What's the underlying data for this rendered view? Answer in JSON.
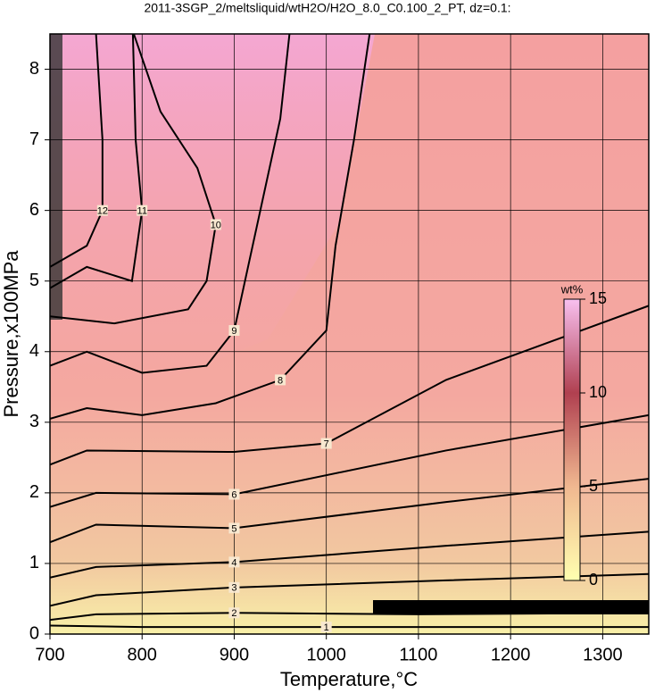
{
  "chart_data": {
    "type": "contour",
    "title": "2011-3SGP_2/meltsliquid/wtH2O/H2O_8.0_C0.100_2_PT, dz=0.1:",
    "xlabel": "Temperature,°C",
    "ylabel": "Pressure,x100MPa",
    "xlim": [
      700,
      1350
    ],
    "ylim": [
      0,
      8.5
    ],
    "xticks": [
      700,
      800,
      900,
      1000,
      1100,
      1200,
      1300
    ],
    "yticks": [
      0,
      1,
      2,
      3,
      4,
      5,
      6,
      7,
      8
    ],
    "grid": true,
    "color": "#000000",
    "colorbar": {
      "label": "wt%",
      "lim": [
        0,
        15
      ],
      "ticks": [
        0,
        5,
        10,
        15
      ],
      "colors": [
        "#ffffb0",
        "#f0b890",
        "#b04050",
        "#f8c0f0"
      ]
    },
    "contours": [
      {
        "level": 1,
        "x": [
          700,
          800,
          900,
          1000,
          1100,
          1200,
          1350
        ],
        "y": [
          0.12,
          0.1,
          0.1,
          0.1,
          0.1,
          0.1,
          0.1
        ]
      },
      {
        "level": 2,
        "x": [
          700,
          750,
          900,
          1100,
          1350
        ],
        "y": [
          0.2,
          0.28,
          0.3,
          0.28,
          0.3
        ]
      },
      {
        "level": 3,
        "x": [
          700,
          750,
          900,
          1130,
          1350
        ],
        "y": [
          0.4,
          0.55,
          0.66,
          0.76,
          0.85
        ]
      },
      {
        "level": 4,
        "x": [
          700,
          750,
          900,
          1130,
          1350
        ],
        "y": [
          0.8,
          0.95,
          1.02,
          1.25,
          1.45
        ]
      },
      {
        "level": 5,
        "x": [
          700,
          750,
          900,
          1130,
          1350
        ],
        "y": [
          1.3,
          1.55,
          1.5,
          1.87,
          2.2
        ]
      },
      {
        "level": 6,
        "x": [
          700,
          750,
          900,
          1130,
          1350
        ],
        "y": [
          1.8,
          2.0,
          1.98,
          2.6,
          3.1
        ]
      },
      {
        "level": 7,
        "x": [
          700,
          740,
          900,
          1000,
          1130,
          1350
        ],
        "y": [
          2.4,
          2.6,
          2.58,
          2.7,
          3.6,
          4.65
        ]
      },
      {
        "level": 8,
        "x": [
          700,
          740,
          800,
          880,
          950,
          1000,
          1010,
          1030,
          1047
        ],
        "y": [
          3.05,
          3.2,
          3.1,
          3.27,
          3.6,
          4.3,
          5.5,
          7.0,
          8.5
        ]
      },
      {
        "level": 9,
        "x": [
          700,
          740,
          800,
          870,
          900,
          930,
          950,
          960
        ],
        "y": [
          3.8,
          4.0,
          3.7,
          3.8,
          4.3,
          6.1,
          7.3,
          8.5
        ]
      },
      {
        "level": 10,
        "x": [
          700,
          770,
          850,
          870,
          880,
          860,
          820,
          791
        ],
        "y": [
          4.5,
          4.4,
          4.6,
          5.0,
          5.8,
          6.6,
          7.4,
          8.5
        ]
      },
      {
        "level": 11,
        "x": [
          700,
          740,
          789,
          800,
          793,
          790
        ],
        "y": [
          4.9,
          5.2,
          5.0,
          6.0,
          7.0,
          8.5
        ]
      },
      {
        "level": 12,
        "x": [
          700,
          740,
          757,
          757,
          750
        ],
        "y": [
          5.2,
          5.5,
          6.0,
          7.0,
          8.5
        ]
      }
    ]
  }
}
